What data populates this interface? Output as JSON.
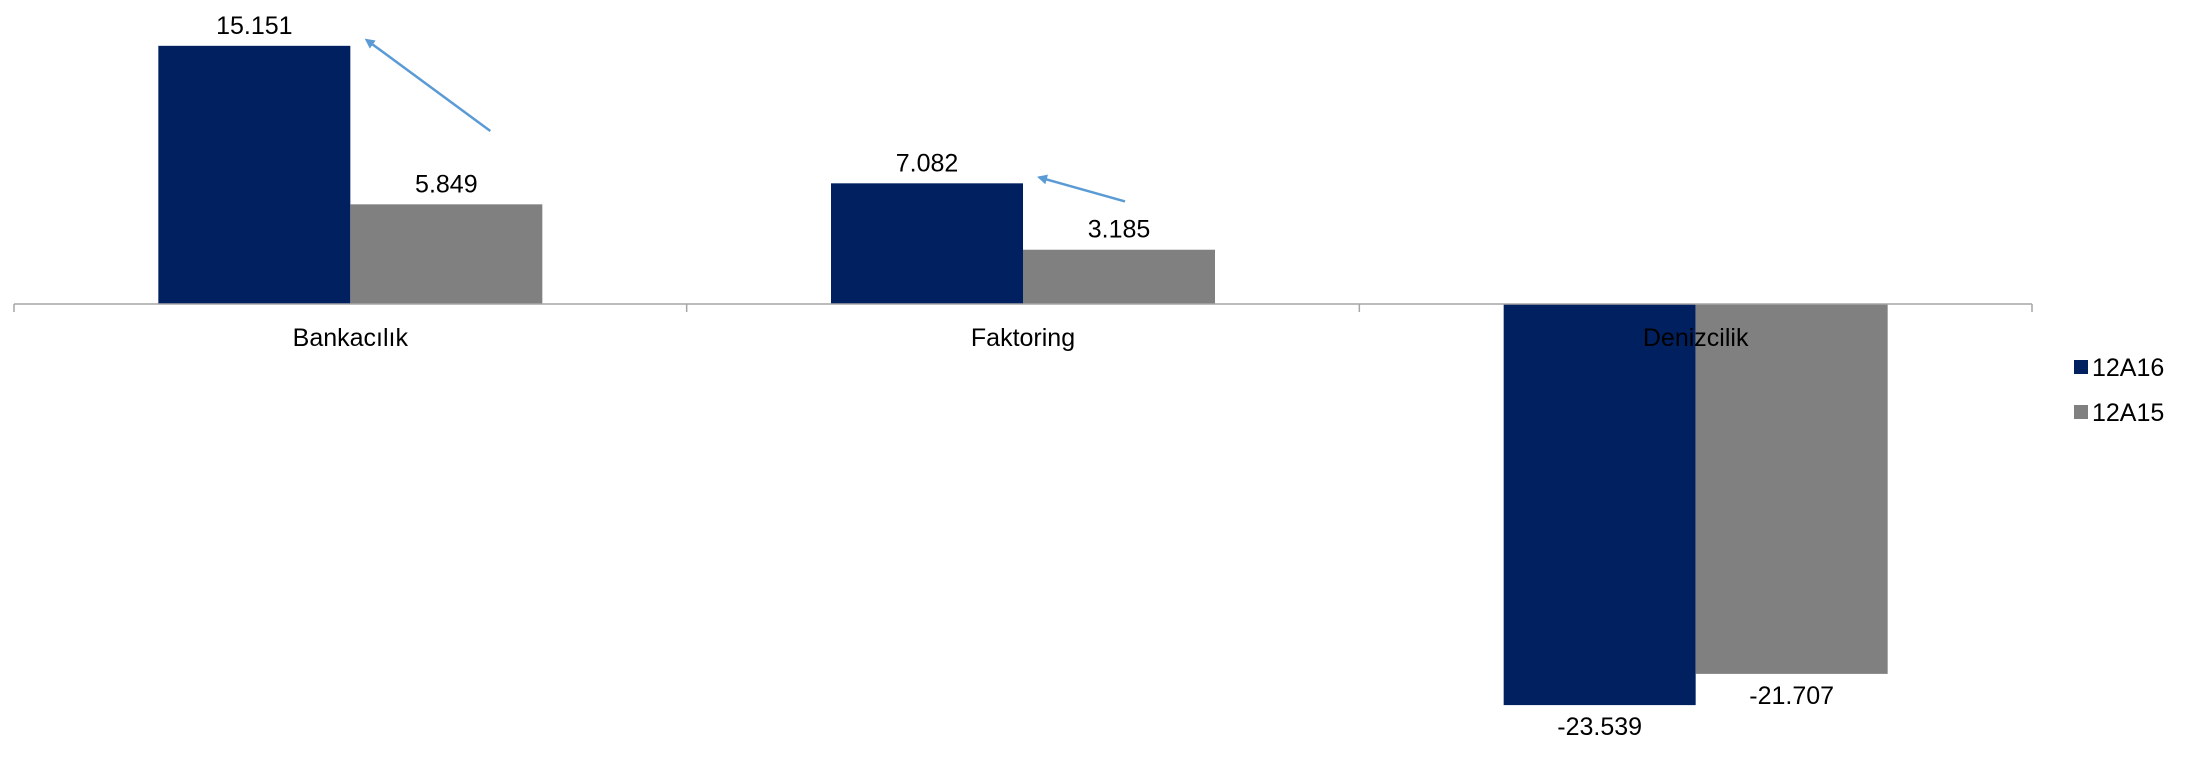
{
  "chart_data": {
    "type": "bar",
    "categories": [
      "Bankacılık",
      "Faktoring",
      "Denizcilik"
    ],
    "series": [
      {
        "name": "12A16",
        "values": [
          15151,
          7082,
          -23539
        ],
        "labels": [
          "15.151",
          "7.082",
          "-23.539"
        ]
      },
      {
        "name": "12A15",
        "values": [
          5849,
          3185,
          -21707
        ],
        "labels": [
          "5.849",
          "3.185",
          "-21.707"
        ]
      }
    ],
    "title": "",
    "xlabel": "",
    "ylabel": "",
    "ylim": [
      -27000,
      17500
    ],
    "grid": false,
    "legend": "right",
    "annotations": [
      {
        "type": "arrow",
        "category": "Bankacılık",
        "direction": "up-left"
      },
      {
        "type": "arrow",
        "category": "Faktoring",
        "direction": "up-left"
      }
    ]
  },
  "colors": {
    "series": [
      "#002060",
      "#808080"
    ],
    "axis": "#a6a6a6",
    "arrow": "#5b9bd5"
  }
}
